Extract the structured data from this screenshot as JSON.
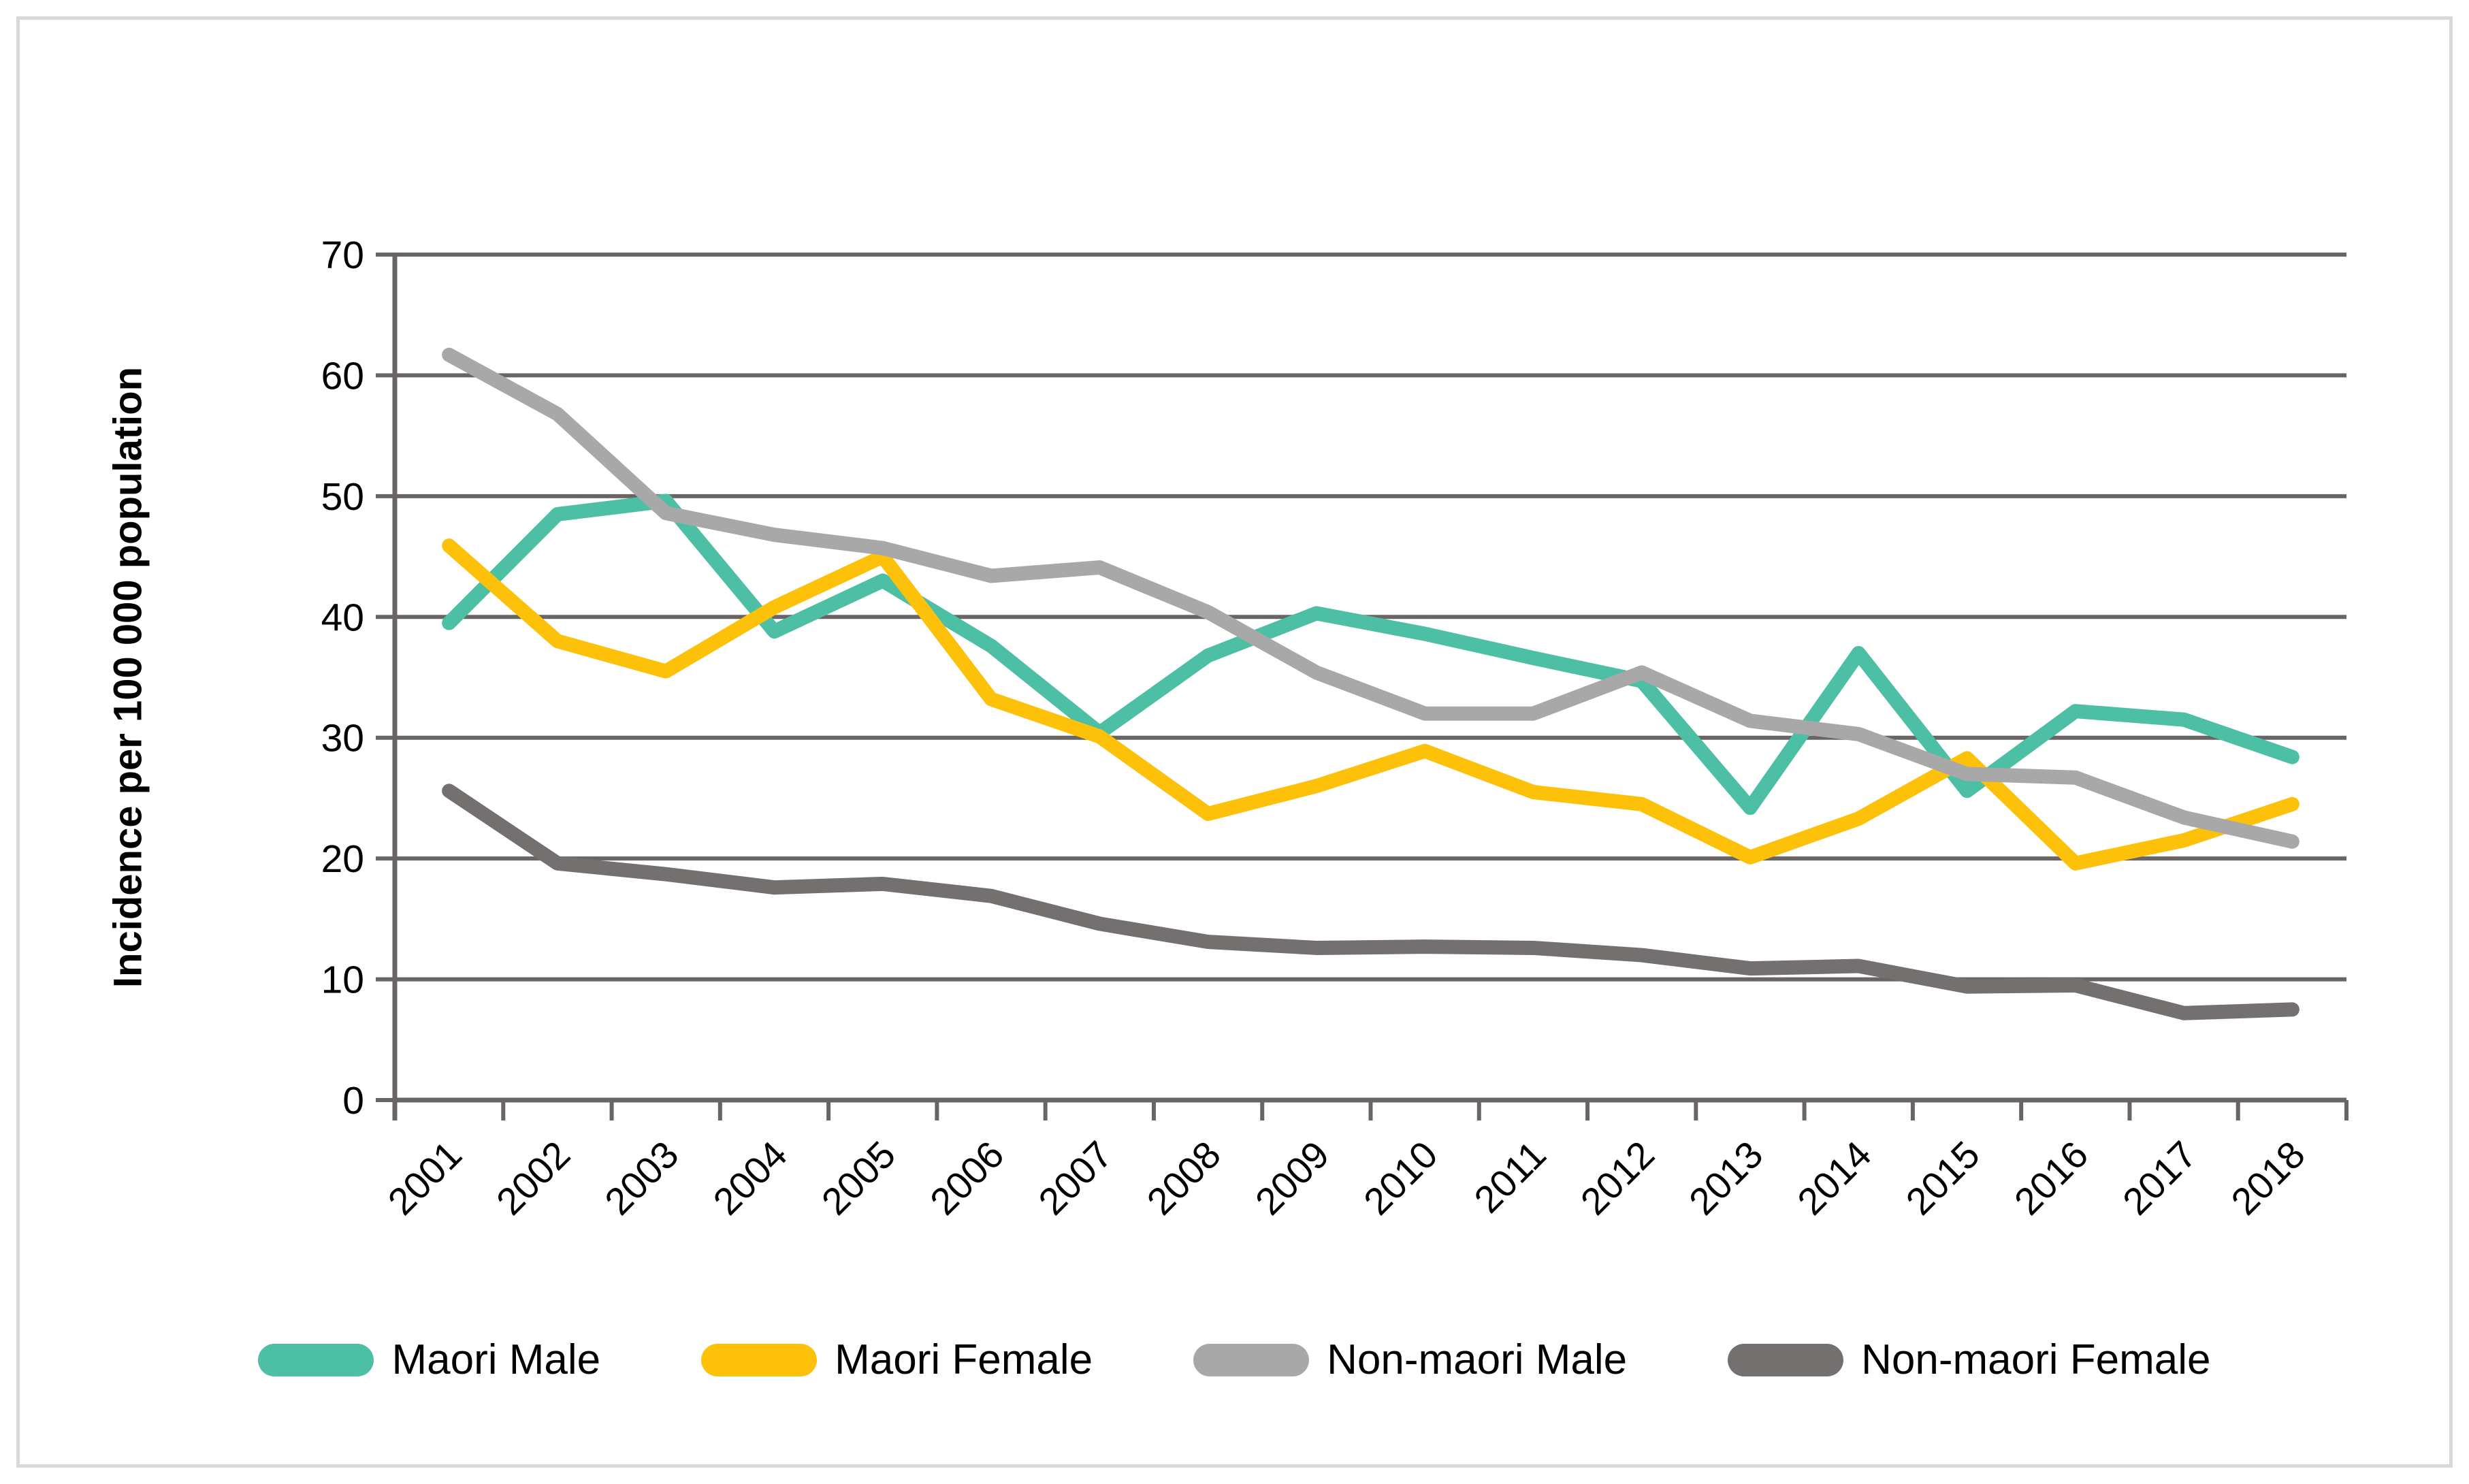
{
  "chart_data": {
    "type": "line",
    "title": "",
    "xlabel": "",
    "ylabel": "Incidence per 100 000 population",
    "ylim": [
      0,
      70
    ],
    "y_step": 10,
    "y_ticks": [
      "0",
      "10",
      "20",
      "30",
      "40",
      "50",
      "60",
      "70"
    ],
    "grid": "horizontal",
    "legend_position": "bottom",
    "categories": [
      "2001",
      "2002",
      "2003",
      "2004",
      "2005",
      "2006",
      "2007",
      "2008",
      "2009",
      "2010",
      "2011",
      "2012",
      "2013",
      "2014",
      "2015",
      "2016",
      "2017",
      "2018"
    ],
    "series": [
      {
        "name": "Maori Male",
        "color": "#4CBFA4",
        "values": [
          39.5,
          48.5,
          49.6,
          38.8,
          43.0,
          37.6,
          30.4,
          36.8,
          40.3,
          38.6,
          36.6,
          34.7,
          24.2,
          37.0,
          25.6,
          32.2,
          31.5,
          28.4
        ]
      },
      {
        "name": "Maori Female",
        "color": "#FDC10A",
        "values": [
          45.9,
          38.0,
          35.5,
          40.8,
          45.0,
          33.2,
          30.1,
          23.7,
          26.0,
          28.9,
          25.5,
          24.5,
          20.1,
          23.3,
          28.3,
          19.6,
          21.5,
          24.5
        ]
      },
      {
        "name": "Non-maori Male",
        "color": "#A8A8A8",
        "values": [
          61.7,
          56.8,
          48.6,
          46.8,
          45.7,
          43.4,
          44.1,
          40.4,
          35.4,
          32.0,
          32.0,
          35.4,
          31.4,
          30.3,
          27.0,
          26.7,
          23.4,
          21.4
        ]
      },
      {
        "name": "Non-maori Female",
        "color": "#757070",
        "values": [
          25.6,
          19.6,
          18.7,
          17.6,
          17.9,
          16.9,
          14.6,
          13.1,
          12.6,
          12.7,
          12.6,
          12.0,
          10.9,
          11.1,
          9.4,
          9.5,
          7.2,
          7.5
        ]
      }
    ],
    "axis_color": "#6A6565",
    "tick_label_color": "#000000",
    "plot": {
      "left": 580,
      "right": 3447,
      "y_zero": 1616,
      "y_top": 374,
      "series_stroke_width": 21,
      "grid_stroke_width": 6,
      "axis_stroke_width": 7
    }
  }
}
